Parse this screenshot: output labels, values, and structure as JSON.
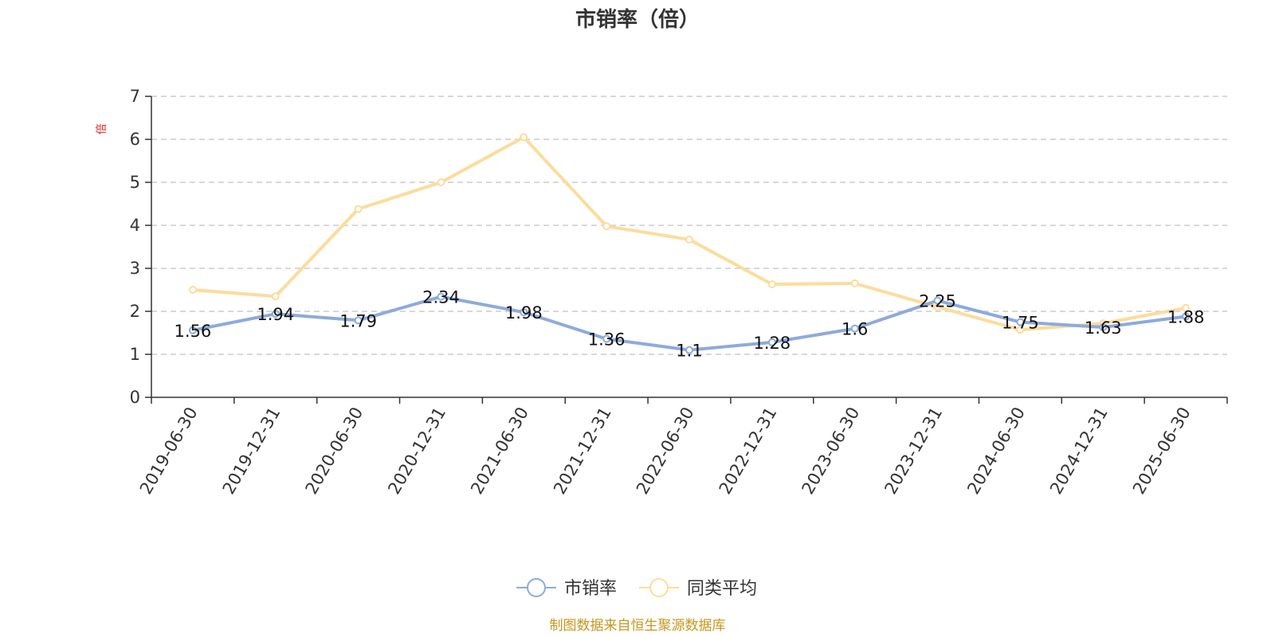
{
  "chart_data": {
    "type": "line",
    "title": "市销率（倍）",
    "ylabel": "倍",
    "ylim": [
      0,
      7
    ],
    "yticks": [
      0,
      1,
      2,
      3,
      4,
      5,
      6,
      7
    ],
    "x": [
      "2019-06-30",
      "2019-12-31",
      "2020-06-30",
      "2020-12-31",
      "2021-06-30",
      "2021-12-31",
      "2022-06-30",
      "2022-12-31",
      "2023-06-30",
      "2023-12-31",
      "2024-06-30",
      "2024-12-31",
      "2025-06-30"
    ],
    "series": [
      {
        "name": "市销率",
        "color": "#8eaadb",
        "values": [
          1.56,
          1.94,
          1.79,
          2.34,
          1.98,
          1.36,
          1.1,
          1.28,
          1.6,
          2.25,
          1.75,
          1.63,
          1.88
        ],
        "labels": [
          "1.56",
          "1.94",
          "1.79",
          "2.34",
          "1.98",
          "1.36",
          "1.1",
          "1.28",
          "1.6",
          "2.25",
          "1.75",
          "1.63",
          "1.88"
        ]
      },
      {
        "name": "同类平均",
        "color": "#fcdc9c",
        "values": [
          2.5,
          2.35,
          4.38,
          5.0,
          6.05,
          3.98,
          3.67,
          2.63,
          2.65,
          2.1,
          1.57,
          1.72,
          2.08
        ]
      }
    ],
    "grid": true,
    "legend": "bottom-center",
    "unit_color": "#e02020"
  },
  "footer": {
    "source": "制图数据来自恒生聚源数据库",
    "color": "#c8961e"
  }
}
